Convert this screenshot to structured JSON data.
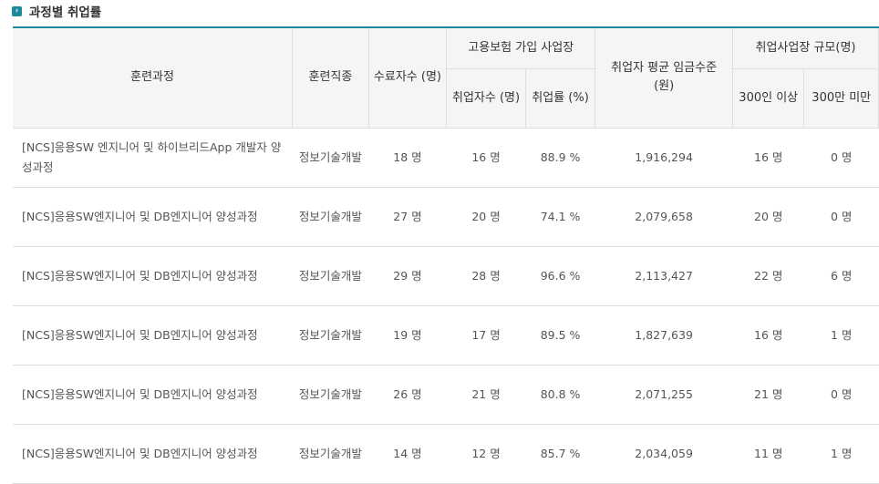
{
  "section_title": "과정별 취업률",
  "title_icon": "arrow-right-icon",
  "accent_color": "#1b8a99",
  "headers": {
    "course": "훈련과정",
    "job": "훈련직종",
    "completed": "수료자수 (명)",
    "insurance_group": "고용보험 가입 사업장",
    "employed": "취업자수 (명)",
    "rate": "취업률 (%)",
    "wage": "취업자 평균 임금수준 (원)",
    "size_group": "취업사업장 규모(명)",
    "size_300_over": "300인 이상",
    "size_300_under": "300만 미만"
  },
  "rows": [
    {
      "course": "[NCS]응용SW 엔지니어 및 하이브리드App 개발자 양성과정",
      "job": "정보기술개발",
      "completed": "18 명",
      "employed": "16 명",
      "rate": "88.9 %",
      "wage": "1,916,294",
      "over300": "16 명",
      "under300": "0 명"
    },
    {
      "course": "[NCS]응용SW엔지니어 및 DB엔지니어 양성과정",
      "job": "정보기술개발",
      "completed": "27 명",
      "employed": "20 명",
      "rate": "74.1 %",
      "wage": "2,079,658",
      "over300": "20 명",
      "under300": "0 명"
    },
    {
      "course": "[NCS]응용SW엔지니어 및 DB엔지니어 양성과정",
      "job": "정보기술개발",
      "completed": "29 명",
      "employed": "28 명",
      "rate": "96.6 %",
      "wage": "2,113,427",
      "over300": "22 명",
      "under300": "6 명"
    },
    {
      "course": "[NCS]응용SW엔지니어 및 DB엔지니어 양성과정",
      "job": "정보기술개발",
      "completed": "19 명",
      "employed": "17 명",
      "rate": "89.5 %",
      "wage": "1,827,639",
      "over300": "16 명",
      "under300": "1 명"
    },
    {
      "course": "[NCS]응용SW엔지니어 및 DB엔지니어 양성과정",
      "job": "정보기술개발",
      "completed": "26 명",
      "employed": "21 명",
      "rate": "80.8 %",
      "wage": "2,071,255",
      "over300": "21 명",
      "under300": "0 명"
    },
    {
      "course": "[NCS]응용SW엔지니어 및 DB엔지니어 양성과정",
      "job": "정보기술개발",
      "completed": "14 명",
      "employed": "12 명",
      "rate": "85.7 %",
      "wage": "2,034,059",
      "over300": "11 명",
      "under300": "1 명"
    }
  ]
}
